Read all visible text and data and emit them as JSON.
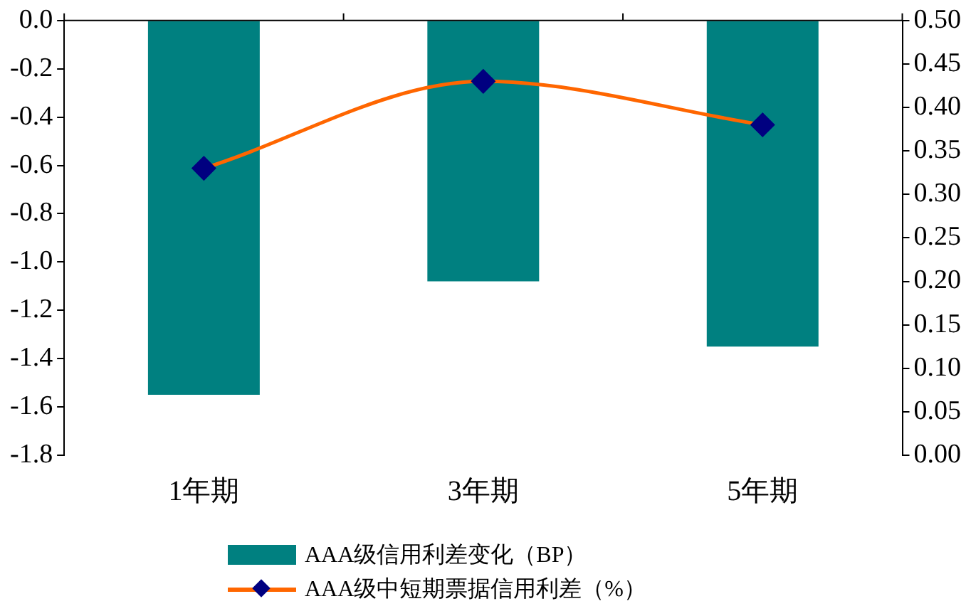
{
  "chart_data": {
    "type": "bar",
    "categories": [
      "1年期",
      "3年期",
      "5年期"
    ],
    "series": [
      {
        "name": "AAA级信用利差变化（BP）",
        "color": "#008080",
        "values": [
          -1.55,
          -1.08,
          -1.35
        ]
      },
      {
        "name": "AAA级中短期票据信用利差（%）",
        "type": "line",
        "axis": "y2",
        "color": "#ff6600",
        "values": [
          0.33,
          0.43,
          0.38
        ]
      }
    ],
    "ylim": [
      -1.8,
      0
    ],
    "yticks": [
      {
        "value": 0,
        "label": "0.0"
      },
      {
        "value": -0.2,
        "label": "-0.2"
      },
      {
        "value": -0.4,
        "label": "-0.4"
      },
      {
        "value": -0.6,
        "label": "-0.6"
      },
      {
        "value": -0.8,
        "label": "-0.8"
      },
      {
        "value": -1.0,
        "label": "-1.0"
      },
      {
        "value": -1.2,
        "label": "-1.2"
      },
      {
        "value": -1.4,
        "label": "-1.4"
      },
      {
        "value": -1.6,
        "label": "-1.6"
      },
      {
        "value": -1.8,
        "label": "-1.8"
      }
    ],
    "y2lim": [
      0,
      0.5
    ],
    "y2ticks": [
      {
        "value": 0,
        "label": "0.00"
      },
      {
        "value": 0.05,
        "label": "0.05"
      },
      {
        "value": 0.1,
        "label": "0.10"
      },
      {
        "value": 0.15,
        "label": "0.15"
      },
      {
        "value": 0.2,
        "label": "0.20"
      },
      {
        "value": 0.25,
        "label": "0.25"
      },
      {
        "value": 0.3,
        "label": "0.30"
      },
      {
        "value": 0.35,
        "label": "0.35"
      },
      {
        "value": 0.4,
        "label": "0.40"
      },
      {
        "value": 0.45,
        "label": "0.45"
      },
      {
        "value": 0.5,
        "label": "0.50"
      }
    ],
    "marker": "diamond",
    "legend": "bottom",
    "grid": false
  }
}
